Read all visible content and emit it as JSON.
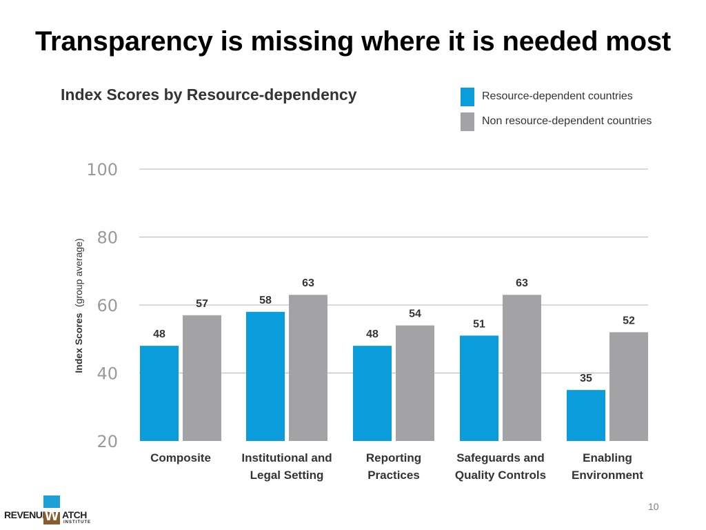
{
  "slide": {
    "title": "Transparency is missing where it is needed most",
    "page_number": "10"
  },
  "logo": {
    "left_text": "REVENUE",
    "mark_letter": "W",
    "right_text": "ATCH",
    "sub_text": "INSTITUTE",
    "colors": {
      "top": "#1da0d8",
      "bottom": "#8a5a2b"
    }
  },
  "chart_data": {
    "type": "bar",
    "title": "Index Scores by Resource-dependency",
    "ylabel_bold": "Index Scores",
    "ylabel_rest": "(group average)",
    "ylim": [
      20,
      100
    ],
    "yticks": [
      20,
      40,
      60,
      80,
      100
    ],
    "grid": true,
    "legend_position": "top-right",
    "categories": [
      [
        "Composite"
      ],
      [
        "Institutional and",
        "Legal Setting"
      ],
      [
        "Reporting",
        "Practices"
      ],
      [
        "Safeguards and",
        "Quality Controls"
      ],
      [
        "Enabling",
        "Environment"
      ]
    ],
    "series": [
      {
        "name": "Resource-dependent countries",
        "color": "#0b9ddb",
        "values": [
          48,
          58,
          48,
          51,
          35
        ]
      },
      {
        "name": "Non resource-dependent countries",
        "color": "#a3a3a5",
        "values": [
          57,
          63,
          54,
          63,
          52
        ]
      }
    ]
  }
}
